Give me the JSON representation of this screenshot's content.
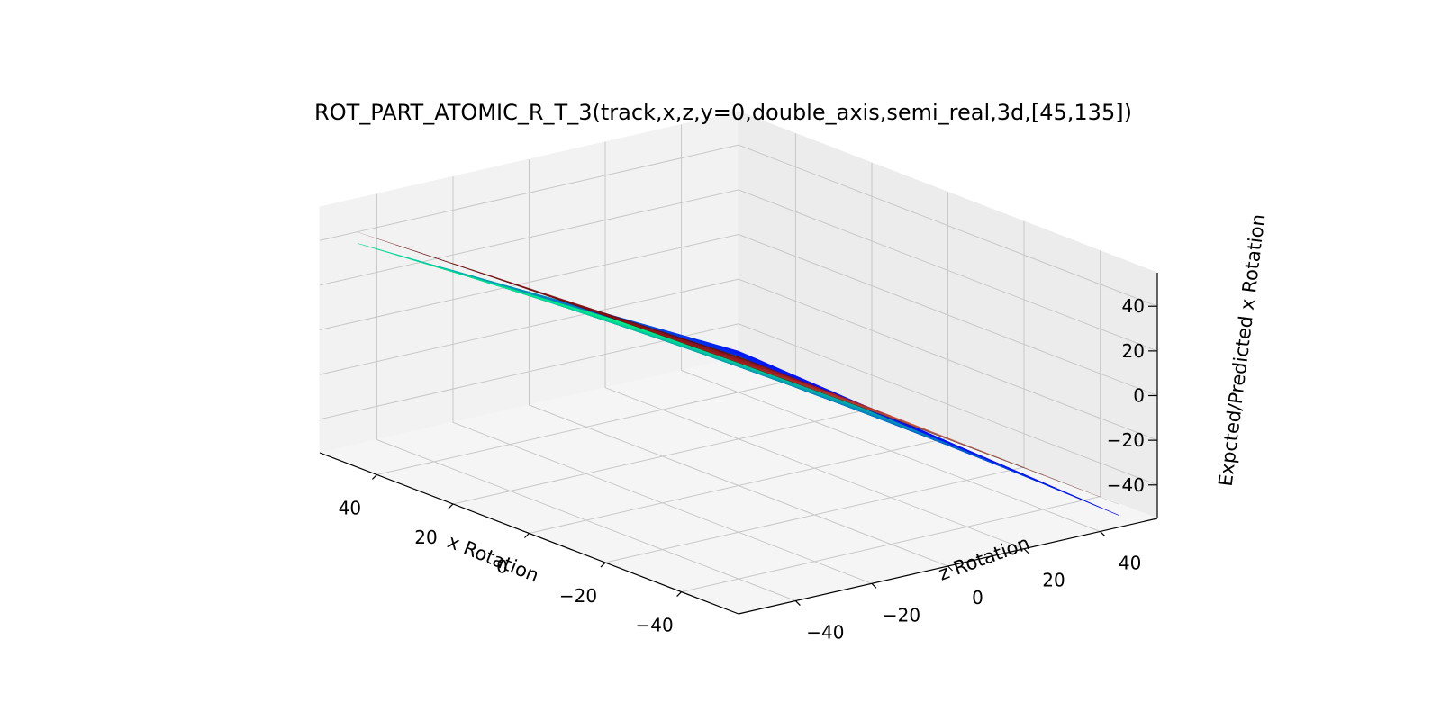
{
  "chart_data": {
    "type": "surface3d",
    "title": "ROT_PART_ATOMIC_R_T_3(track,x,z,y=0,double_axis,semi_real,3d,[45,135])",
    "xlabel": "x Rotation",
    "ylabel": "z Rotation",
    "zlabel": "Expcted/Predicted x Rotation",
    "xlim": [
      -55,
      55
    ],
    "ylim": [
      -55,
      55
    ],
    "zlim": [
      -55,
      55
    ],
    "x_ticks": [
      "40",
      "20",
      "0",
      "−20",
      "−40"
    ],
    "y_ticks": [
      "−40",
      "−20",
      "0",
      "20",
      "40"
    ],
    "z_ticks": [
      "40",
      "20",
      "0",
      "−20",
      "−40"
    ],
    "grid": true,
    "series": [
      {
        "colormap": "winter",
        "x_range": [
          -50,
          50
        ],
        "y_range": [
          -50,
          50
        ],
        "corner_values": {
          "x_max_y_min": 40,
          "x_min_y_min": 55,
          "x_max_y_max": -47,
          "x_min_y_max": -55
        },
        "colors": {
          "low": "#0000ff",
          "high": "#00ff80"
        }
      },
      {
        "colormap": "Reds",
        "x_range": [
          -50,
          50
        ],
        "y_range": [
          -50,
          50
        ],
        "corner_values": {
          "x_max_y_min": 45,
          "x_min_y_min": 55,
          "x_max_y_max": -50,
          "x_min_y_max": -50
        },
        "colors": {
          "low": "#fff5f0",
          "high": "#67000d"
        }
      }
    ]
  }
}
